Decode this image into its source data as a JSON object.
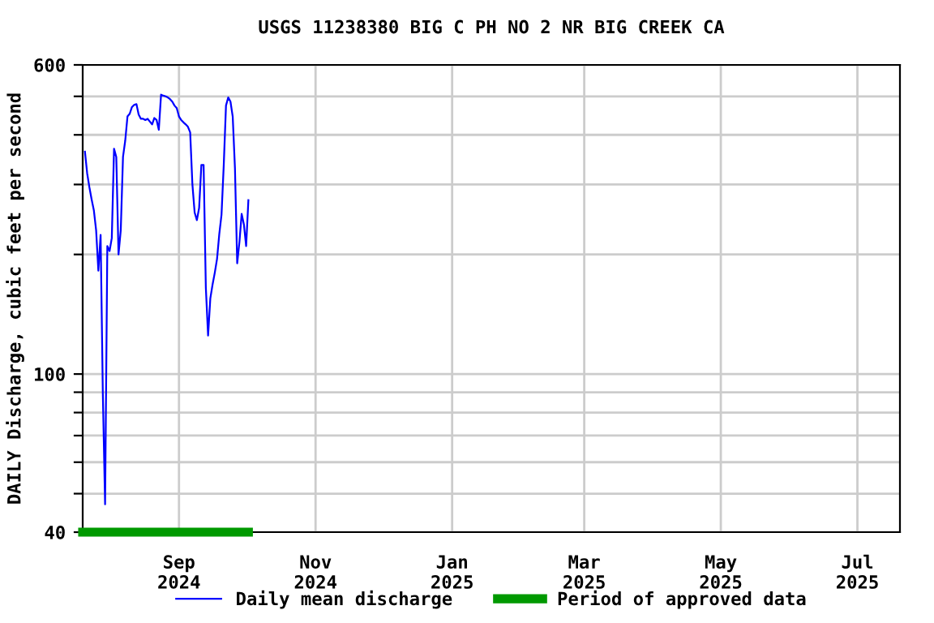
{
  "chart_data": {
    "type": "line",
    "title": "USGS 11238380 BIG C PH NO 2 NR BIG CREEK CA",
    "ylabel": "DAILY Discharge, cubic feet per second",
    "x": [
      "2024-07-21",
      "2024-07-22",
      "2024-07-23",
      "2024-07-24",
      "2024-07-25",
      "2024-07-26",
      "2024-07-27",
      "2024-07-28",
      "2024-07-29",
      "2024-07-30",
      "2024-07-31",
      "2024-08-01",
      "2024-08-02",
      "2024-08-03",
      "2024-08-04",
      "2024-08-05",
      "2024-08-06",
      "2024-08-07",
      "2024-08-08",
      "2024-08-09",
      "2024-08-10",
      "2024-08-11",
      "2024-08-12",
      "2024-08-13",
      "2024-08-14",
      "2024-08-15",
      "2024-08-16",
      "2024-08-17",
      "2024-08-18",
      "2024-08-19",
      "2024-08-20",
      "2024-08-21",
      "2024-08-22",
      "2024-08-23",
      "2024-08-24",
      "2024-08-25",
      "2024-08-26",
      "2024-08-27",
      "2024-08-28",
      "2024-08-29",
      "2024-08-30",
      "2024-08-31",
      "2024-09-01",
      "2024-09-02",
      "2024-09-03",
      "2024-09-04",
      "2024-09-05",
      "2024-09-06",
      "2024-09-07",
      "2024-09-08",
      "2024-09-09",
      "2024-09-10",
      "2024-09-11",
      "2024-09-12",
      "2024-09-13",
      "2024-09-14",
      "2024-09-15",
      "2024-09-16",
      "2024-09-17",
      "2024-09-18",
      "2024-09-19",
      "2024-09-20",
      "2024-09-21",
      "2024-09-22",
      "2024-09-23",
      "2024-09-24",
      "2024-09-25",
      "2024-09-26",
      "2024-09-27",
      "2024-09-28",
      "2024-09-29",
      "2024-09-30",
      "2024-10-01",
      "2024-10-02"
    ],
    "series": [
      {
        "name": "Daily mean discharge",
        "color": "#0000ff",
        "values": [
          363,
          320,
          295,
          275,
          258,
          230,
          182,
          224,
          89,
          47,
          210,
          204,
          220,
          369,
          352,
          200,
          230,
          352,
          387,
          445,
          452,
          470,
          476,
          478,
          450,
          439,
          439,
          436,
          439,
          432,
          425,
          441,
          436,
          412,
          505,
          502,
          500,
          497,
          492,
          485,
          474,
          467,
          445,
          436,
          430,
          425,
          419,
          406,
          300,
          255,
          244,
          262,
          336,
          336,
          165,
          125,
          155,
          168,
          180,
          195,
          225,
          252,
          336,
          474,
          497,
          485,
          445,
          330,
          190,
          215,
          253,
          238,
          210,
          274
        ]
      },
      {
        "name": "Period of approved data",
        "color": "#009900",
        "x": [
          "2024-07-20",
          "2024-10-02"
        ],
        "values": [
          40,
          40
        ]
      }
    ],
    "xlim": [
      "2024-07-20",
      "2025-07-20"
    ],
    "xticks": [
      {
        "value": "2024-09-01",
        "label": "Sep\n2024"
      },
      {
        "value": "2024-11-01",
        "label": "Nov\n2024"
      },
      {
        "value": "2025-01-01",
        "label": "Jan\n2025"
      },
      {
        "value": "2025-03-01",
        "label": "Mar\n2025"
      },
      {
        "value": "2025-05-01",
        "label": "May\n2025"
      },
      {
        "value": "2025-07-01",
        "label": "Jul\n2025"
      }
    ],
    "log": "y",
    "ylim": [
      40,
      600
    ],
    "yticks": [
      40,
      {
        "value": 50,
        "label": null
      },
      {
        "value": 60,
        "label": null
      },
      {
        "value": 70,
        "label": null
      },
      {
        "value": 80,
        "label": null
      },
      {
        "value": 90,
        "label": null
      },
      100,
      {
        "value": 200,
        "label": null
      },
      {
        "value": 300,
        "label": null
      },
      {
        "value": 400,
        "label": null
      },
      {
        "value": 500,
        "label": null
      },
      600
    ],
    "grid": true,
    "legend": "bottom"
  }
}
